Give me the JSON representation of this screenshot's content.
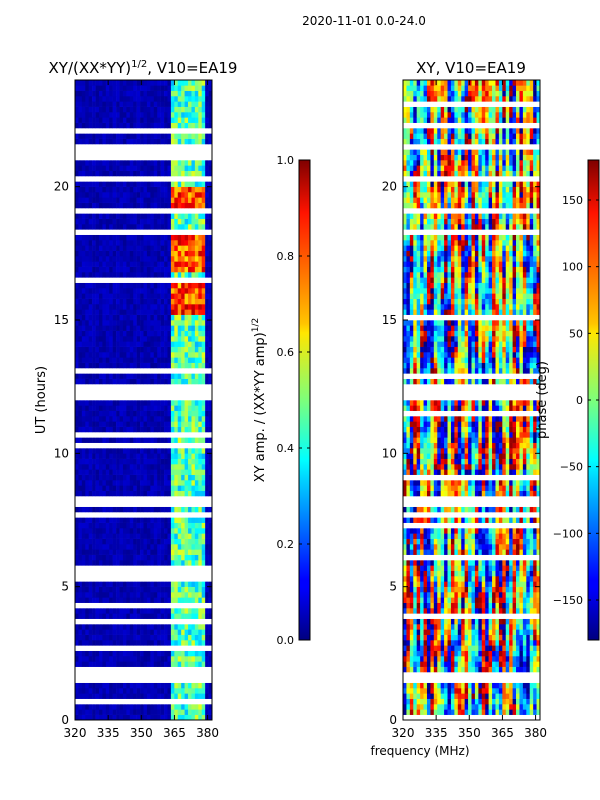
{
  "suptitle": "2020-11-01 0.0-24.0",
  "chart_data": [
    {
      "type": "heatmap",
      "title": "XY/(XX*YY)",
      "title_sup": "1/2",
      "title_suffix": ", V10=EA19",
      "xlabel": "",
      "ylabel": "UT (hours)",
      "xlim": [
        320,
        382
      ],
      "ylim": [
        0,
        24
      ],
      "xticks": [
        320,
        335,
        350,
        365,
        380
      ],
      "yticks": [
        0,
        5,
        10,
        15,
        20
      ],
      "colorbar": {
        "label": "XY amp. / (XX*YY amp)",
        "label_sup": "1/2",
        "range": [
          0.0,
          1.0
        ],
        "ticks": [
          "0.0",
          "0.2",
          "0.4",
          "0.6",
          "0.8",
          "1.0"
        ],
        "tick_values": [
          0.0,
          0.2,
          0.4,
          0.6,
          0.8,
          1.0
        ]
      },
      "active_band_mhz": [
        363,
        379
      ],
      "mean_amplitude_active": 0.45,
      "mean_amplitude_inactive": 0.02,
      "high_amplitude_hours": [
        [
          15.3,
          16.4
        ],
        [
          16.8,
          18.2
        ],
        [
          19.1,
          20.0
        ]
      ],
      "gap_hours": [
        [
          1.4,
          1.7
        ],
        [
          8.0,
          8.3
        ],
        [
          12.0,
          12.6
        ],
        [
          20.2,
          20.4
        ]
      ]
    },
    {
      "type": "heatmap",
      "title": "XY, V10=EA19",
      "xlabel": "frequency (MHz)",
      "ylabel": "",
      "xlim": [
        320,
        382
      ],
      "ylim": [
        0,
        24
      ],
      "xticks": [
        320,
        335,
        350,
        365,
        380
      ],
      "yticks": [
        0,
        5,
        10,
        15,
        20
      ],
      "colorbar": {
        "label": "phase (deg)",
        "range": [
          -180,
          180
        ],
        "ticks": [
          "150",
          "100",
          "50",
          "0",
          "−50",
          "−100",
          "−150"
        ],
        "tick_values": [
          150,
          100,
          50,
          0,
          -50,
          -100,
          -150
        ]
      },
      "gap_hours": [
        [
          1.4,
          1.7
        ],
        [
          8.0,
          8.3
        ],
        [
          12.0,
          12.6
        ],
        [
          20.2,
          20.4
        ]
      ]
    }
  ]
}
